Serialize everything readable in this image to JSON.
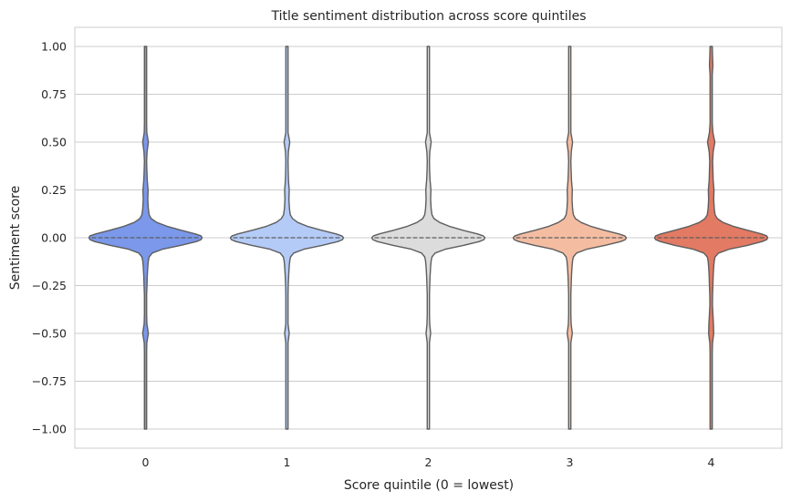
{
  "chart_data": {
    "type": "violin",
    "title": "Title sentiment distribution across score quintiles",
    "xlabel": "Score quintile (0 = lowest)",
    "ylabel": "Sentiment score",
    "categories": [
      "0",
      "1",
      "2",
      "3",
      "4"
    ],
    "y_ticks": [
      "1.00",
      "0.75",
      "0.50",
      "0.25",
      "0.00",
      "−0.25",
      "−0.50",
      "−0.75",
      "−1.00"
    ],
    "y_tick_values": [
      1.0,
      0.75,
      0.5,
      0.25,
      0.0,
      -0.25,
      -0.5,
      -0.75,
      -1.0
    ],
    "ylim": [
      -1.1,
      1.1
    ],
    "grid": "horizontal",
    "colors": [
      "#7b98ea",
      "#b4cbf7",
      "#dcdcdc",
      "#f4bda2",
      "#e27a64"
    ],
    "outline_color": "#5e5e5e",
    "median": [
      0.0,
      0.0,
      0.0,
      0.0,
      0.0
    ],
    "density_profile": {
      "sentiment": [
        1.0,
        0.95,
        0.9,
        0.85,
        0.8,
        0.75,
        0.7,
        0.65,
        0.6,
        0.55,
        0.5,
        0.45,
        0.4,
        0.35,
        0.3,
        0.25,
        0.2,
        0.15,
        0.12,
        0.1,
        0.08,
        0.06,
        0.04,
        0.02,
        0.01,
        0.0,
        -0.01,
        -0.02,
        -0.04,
        -0.06,
        -0.08,
        -0.1,
        -0.12,
        -0.15,
        -0.2,
        -0.25,
        -0.3,
        -0.35,
        -0.4,
        -0.45,
        -0.5,
        -0.55,
        -0.6,
        -0.65,
        -0.7,
        -0.75,
        -0.8,
        -0.85,
        -0.9,
        -0.95,
        -1.0
      ],
      "relative_width": [
        [
          0.02,
          0.02,
          0.018,
          0.016,
          0.02,
          0.02,
          0.018,
          0.016,
          0.016,
          0.022,
          0.05,
          0.028,
          0.02,
          0.024,
          0.03,
          0.045,
          0.04,
          0.05,
          0.065,
          0.1,
          0.2,
          0.38,
          0.62,
          0.88,
          0.98,
          1.0,
          0.98,
          0.9,
          0.62,
          0.3,
          0.12,
          0.065,
          0.05,
          0.04,
          0.03,
          0.025,
          0.02,
          0.018,
          0.02,
          0.024,
          0.05,
          0.022,
          0.016,
          0.012,
          0.012,
          0.01,
          0.01,
          0.01,
          0.01,
          0.01,
          0.01
        ],
        [
          0.02,
          0.02,
          0.016,
          0.014,
          0.016,
          0.016,
          0.014,
          0.014,
          0.014,
          0.018,
          0.05,
          0.026,
          0.02,
          0.022,
          0.028,
          0.04,
          0.035,
          0.045,
          0.06,
          0.1,
          0.19,
          0.36,
          0.6,
          0.87,
          0.97,
          1.0,
          0.98,
          0.9,
          0.62,
          0.3,
          0.12,
          0.065,
          0.05,
          0.04,
          0.03,
          0.022,
          0.018,
          0.016,
          0.014,
          0.02,
          0.04,
          0.018,
          0.012,
          0.01,
          0.01,
          0.01,
          0.01,
          0.01,
          0.01,
          0.01,
          0.01
        ],
        [
          0.02,
          0.02,
          0.016,
          0.014,
          0.016,
          0.016,
          0.014,
          0.014,
          0.014,
          0.02,
          0.05,
          0.026,
          0.02,
          0.022,
          0.03,
          0.045,
          0.04,
          0.05,
          0.065,
          0.1,
          0.2,
          0.37,
          0.6,
          0.87,
          0.97,
          1.0,
          0.98,
          0.9,
          0.62,
          0.3,
          0.12,
          0.065,
          0.05,
          0.04,
          0.03,
          0.024,
          0.02,
          0.018,
          0.018,
          0.024,
          0.04,
          0.02,
          0.014,
          0.01,
          0.01,
          0.01,
          0.01,
          0.01,
          0.01,
          0.01,
          0.01
        ],
        [
          0.02,
          0.02,
          0.016,
          0.014,
          0.018,
          0.018,
          0.016,
          0.014,
          0.014,
          0.02,
          0.05,
          0.028,
          0.02,
          0.024,
          0.03,
          0.045,
          0.04,
          0.05,
          0.065,
          0.1,
          0.2,
          0.37,
          0.6,
          0.87,
          0.97,
          1.0,
          0.98,
          0.9,
          0.62,
          0.3,
          0.12,
          0.065,
          0.05,
          0.04,
          0.03,
          0.024,
          0.02,
          0.018,
          0.018,
          0.024,
          0.045,
          0.02,
          0.014,
          0.01,
          0.01,
          0.01,
          0.01,
          0.01,
          0.01,
          0.01,
          0.01
        ],
        [
          0.02,
          0.025,
          0.03,
          0.02,
          0.018,
          0.018,
          0.016,
          0.016,
          0.02,
          0.03,
          0.065,
          0.035,
          0.026,
          0.03,
          0.035,
          0.05,
          0.045,
          0.055,
          0.07,
          0.11,
          0.21,
          0.39,
          0.63,
          0.89,
          0.98,
          1.0,
          0.98,
          0.9,
          0.64,
          0.32,
          0.13,
          0.07,
          0.055,
          0.045,
          0.035,
          0.03,
          0.025,
          0.022,
          0.03,
          0.04,
          0.045,
          0.025,
          0.016,
          0.012,
          0.012,
          0.01,
          0.01,
          0.01,
          0.01,
          0.01,
          0.01
        ]
      ]
    }
  }
}
